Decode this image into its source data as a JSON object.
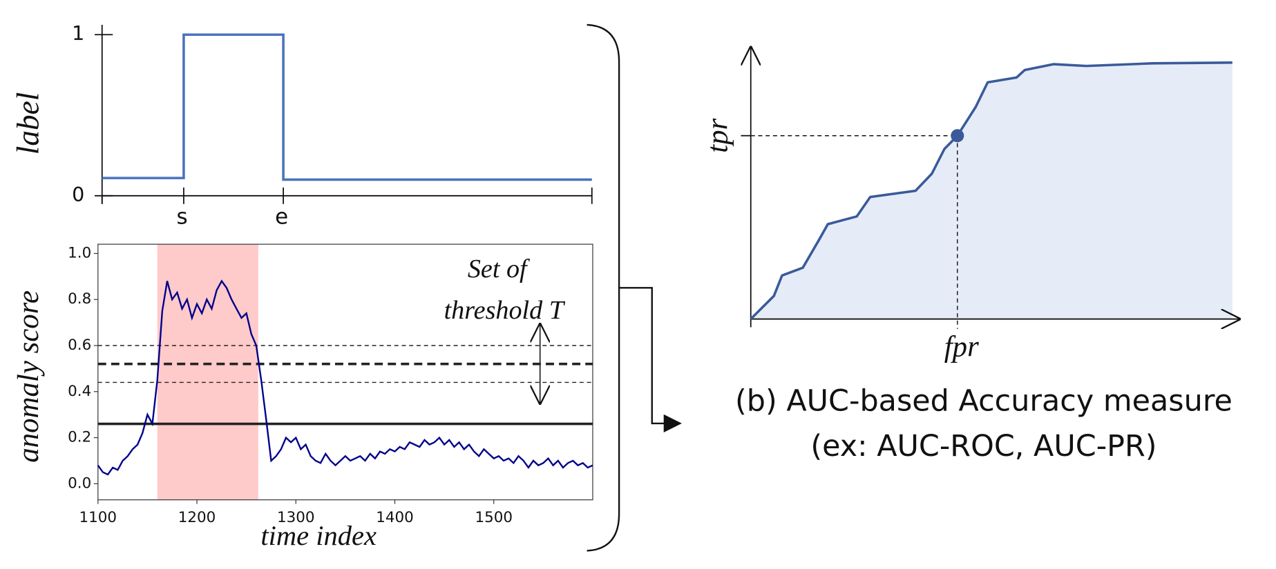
{
  "chart_data": [
    {
      "type": "step",
      "ylabel": "label",
      "xlim": [
        0,
        6
      ],
      "ylim": [
        0,
        1
      ],
      "yticks": [
        0,
        1
      ],
      "xticks": [
        {
          "value": 1,
          "label": "s"
        },
        {
          "value": 2.22,
          "label": "e"
        }
      ],
      "x": [
        0,
        1,
        1,
        2.22,
        2.22,
        6
      ],
      "values": [
        0.11,
        0.11,
        1,
        1,
        0.1,
        0.1
      ],
      "color": "#4a72c0"
    },
    {
      "type": "line",
      "ylabel": "anomaly score",
      "xlabel": "time index",
      "annotation": [
        "Set of",
        "threshold T"
      ],
      "xlim": [
        1100,
        1600
      ],
      "ylim": [
        -0.07,
        1.04
      ],
      "xticks": [
        1100,
        1200,
        1300,
        1400,
        1500
      ],
      "yticks": [
        {
          "value": 0,
          "label": "0.0"
        },
        0.2,
        0.4,
        0.6,
        0.8,
        {
          "value": 1,
          "label": "1.0"
        }
      ],
      "shade": [
        1160,
        1262
      ],
      "shade_color": "#ffb3b3",
      "thresholds": [
        {
          "value": 0.6,
          "style": "thin-dashed"
        },
        {
          "value": 0.52,
          "style": "thick-dashed"
        },
        {
          "value": 0.44,
          "style": "thin-dashed"
        },
        {
          "value": 0.26,
          "style": "solid"
        }
      ],
      "x": [
        1100,
        1105,
        1110,
        1115,
        1120,
        1125,
        1130,
        1135,
        1140,
        1145,
        1150,
        1155,
        1160,
        1165,
        1170,
        1175,
        1180,
        1185,
        1190,
        1195,
        1200,
        1205,
        1210,
        1215,
        1220,
        1225,
        1230,
        1235,
        1240,
        1245,
        1250,
        1255,
        1260,
        1265,
        1270,
        1275,
        1280,
        1285,
        1290,
        1295,
        1300,
        1305,
        1310,
        1315,
        1320,
        1325,
        1330,
        1335,
        1340,
        1345,
        1350,
        1355,
        1360,
        1365,
        1370,
        1375,
        1380,
        1385,
        1390,
        1395,
        1400,
        1405,
        1410,
        1415,
        1420,
        1425,
        1430,
        1435,
        1440,
        1445,
        1450,
        1455,
        1460,
        1465,
        1470,
        1475,
        1480,
        1485,
        1490,
        1495,
        1500,
        1505,
        1510,
        1515,
        1520,
        1525,
        1530,
        1535,
        1540,
        1545,
        1550,
        1555,
        1560,
        1565,
        1570,
        1575,
        1580,
        1585,
        1590,
        1595,
        1600
      ],
      "series": [
        {
          "color": "#00008b",
          "values": [
            0.08,
            0.05,
            0.04,
            0.07,
            0.06,
            0.1,
            0.12,
            0.15,
            0.17,
            0.22,
            0.3,
            0.26,
            0.45,
            0.75,
            0.88,
            0.8,
            0.83,
            0.76,
            0.8,
            0.72,
            0.78,
            0.74,
            0.8,
            0.76,
            0.84,
            0.88,
            0.85,
            0.8,
            0.76,
            0.72,
            0.74,
            0.65,
            0.6,
            0.45,
            0.28,
            0.1,
            0.12,
            0.15,
            0.2,
            0.18,
            0.2,
            0.15,
            0.17,
            0.12,
            0.1,
            0.09,
            0.13,
            0.1,
            0.08,
            0.1,
            0.12,
            0.1,
            0.11,
            0.12,
            0.1,
            0.13,
            0.11,
            0.14,
            0.13,
            0.15,
            0.14,
            0.16,
            0.15,
            0.18,
            0.17,
            0.16,
            0.19,
            0.17,
            0.18,
            0.2,
            0.17,
            0.19,
            0.16,
            0.18,
            0.15,
            0.17,
            0.14,
            0.12,
            0.15,
            0.13,
            0.11,
            0.12,
            0.1,
            0.11,
            0.09,
            0.12,
            0.1,
            0.07,
            0.1,
            0.08,
            0.09,
            0.11,
            0.08,
            0.1,
            0.07,
            0.09,
            0.1,
            0.08,
            0.09,
            0.07,
            0.08
          ]
        }
      ]
    },
    {
      "type": "area",
      "xlabel": "fpr",
      "ylabel": "tpr",
      "xlim": [
        0,
        1
      ],
      "ylim": [
        0,
        1
      ],
      "x": [
        0,
        0.048,
        0.065,
        0.108,
        0.142,
        0.16,
        0.22,
        0.248,
        0.342,
        0.376,
        0.402,
        0.429,
        0.467,
        0.492,
        0.552,
        0.569,
        0.629,
        0.697,
        0.834,
        1
      ],
      "values": [
        0,
        0.09,
        0.17,
        0.2,
        0.31,
        0.37,
        0.4,
        0.476,
        0.5,
        0.567,
        0.663,
        0.715,
        0.827,
        0.923,
        0.942,
        0.971,
        0.994,
        0.987,
        0.997,
        1
      ],
      "color": "#3a5a9a",
      "fill": "#e6ecf7",
      "marker": {
        "x": 0.429,
        "y": 0.715
      }
    }
  ],
  "caption": [
    "(b) AUC-based Accuracy measure",
    "(ex: AUC-ROC, AUC-PR)"
  ]
}
